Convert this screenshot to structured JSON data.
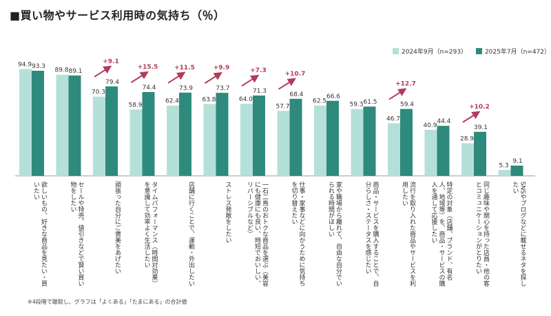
{
  "title": "■買い物やサービス利用時の気持ち（％）",
  "footnote": "※4段階で聴取し、グラフは「よくある」「たまにある」の合計値",
  "colors": {
    "series2024": "#b5e0d9",
    "series2025": "#2e8a7c",
    "arrow": "#b23a5a",
    "axis": "#999999"
  },
  "chart_data": {
    "type": "bar",
    "ylim": [
      0,
      100
    ],
    "categories": [
      "欲しいもの、好きな商品を見たい・買いたい",
      "セールや特売、値引きなどで賢い買い物をしたい",
      "頑張った自分にご褒美をあげたい",
      "タイムパフォーマンス（時間対効果）を意識して効率よく生活したい",
      "店舗に行くことで、運動・外出したい",
      "ストレス発散をしたい",
      "一石二鳥のおトクな商品を選ぶ（美容にも健康にも良い、時短でおいしい、リバーシブルなど）",
      "仕事・家事などに向かうために気持ちを切り替えたい",
      "家や職場から離れて、自由な自分でいられる時間がほしい",
      "商品・サービスを購入することで、自分らしさ・ステータスを感じたい",
      "流行を取り入れた商品やサービスを利用したい",
      "特定の対象（店舗、ブランド、有名人、地域等）を、商品・サービスの購入を通して応援したい",
      "同じ趣味や関心を持った店員・他の客とコミュニケーションがとりたい",
      "SNSやブログなどに載せるネタを探したい"
    ],
    "series": [
      {
        "name": "2024年9月（n=293）",
        "values": [
          94.9,
          89.8,
          70.3,
          58.9,
          62.4,
          63.8,
          64.0,
          57.7,
          62.5,
          59.3,
          46.7,
          40.9,
          28.9,
          5.3
        ]
      },
      {
        "name": "2025年7月（n=472）",
        "values": [
          93.3,
          89.1,
          79.4,
          74.4,
          73.9,
          73.7,
          71.3,
          68.4,
          66.6,
          61.5,
          59.4,
          44.4,
          39.1,
          9.1
        ]
      }
    ],
    "value_labels": [
      [
        "94.9",
        "93.3"
      ],
      [
        "89.8",
        "89.1"
      ],
      [
        "70.3",
        "79.4"
      ],
      [
        "58.9",
        "74.4"
      ],
      [
        "62.4",
        "73.9"
      ],
      [
        "63.8",
        "73.7"
      ],
      [
        "64.0",
        "71.3"
      ],
      [
        "57.7",
        "68.4"
      ],
      [
        "62.5",
        "66.6"
      ],
      [
        "59.3",
        "61.5"
      ],
      [
        "46.7",
        "59.4"
      ],
      [
        "40.9",
        "44.4"
      ],
      [
        "28.9",
        "39.1"
      ],
      [
        "5.3",
        "9.1"
      ]
    ],
    "annotations": [
      {
        "category_index": 2,
        "text": "+9.1"
      },
      {
        "category_index": 3,
        "text": "+15.5"
      },
      {
        "category_index": 4,
        "text": "+11.5"
      },
      {
        "category_index": 5,
        "text": "+9.9"
      },
      {
        "category_index": 6,
        "text": "+7.3"
      },
      {
        "category_index": 7,
        "text": "+10.7"
      },
      {
        "category_index": 10,
        "text": "+12.7"
      },
      {
        "category_index": 12,
        "text": "+10.2"
      }
    ],
    "legend_position": "top-right",
    "grid": false
  }
}
